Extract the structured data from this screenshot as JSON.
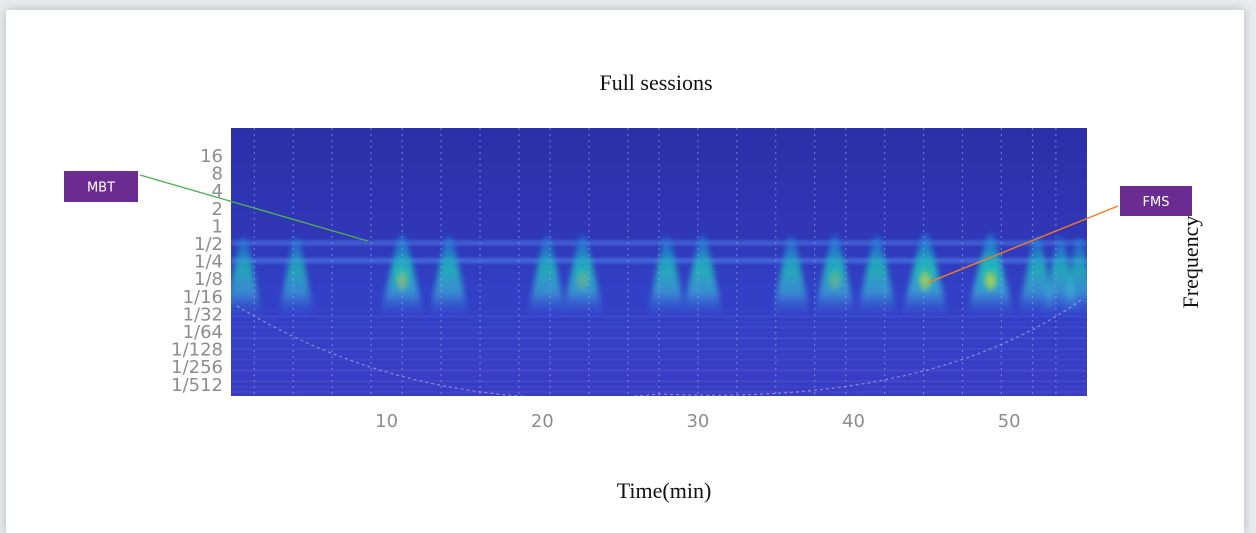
{
  "chart_data": {
    "type": "heatmap",
    "title": "Full sessions",
    "xlabel": "Time(min)",
    "ylabel": "Frequency",
    "xlim": [
      0,
      55
    ],
    "x_ticks": [
      10,
      20,
      30,
      40,
      50
    ],
    "y_tick_labels": [
      "16",
      "8",
      "4",
      "2",
      "1",
      "1/2",
      "1/4",
      "1/8",
      "1/16",
      "1/32",
      "1/64",
      "1/128",
      "1/256",
      "1/512"
    ],
    "y_scale": "log2",
    "colormap": "parula",
    "session_markers_min": [
      1.5,
      4,
      6.5,
      9,
      11,
      13.5,
      16,
      18.5,
      20.5,
      23,
      25.5,
      27.5,
      30,
      32.5,
      35,
      37.5,
      39.5,
      42,
      44.5,
      47,
      49.5,
      51.5,
      53
    ],
    "bursts": [
      {
        "time": 0.8,
        "intensity": 0.55
      },
      {
        "time": 4.2,
        "intensity": 0.5
      },
      {
        "time": 11.0,
        "intensity": 0.78
      },
      {
        "time": 14.0,
        "intensity": 0.65
      },
      {
        "time": 20.3,
        "intensity": 0.62
      },
      {
        "time": 22.6,
        "intensity": 0.72
      },
      {
        "time": 28.0,
        "intensity": 0.62
      },
      {
        "time": 30.3,
        "intensity": 0.7
      },
      {
        "time": 36.0,
        "intensity": 0.6
      },
      {
        "time": 38.8,
        "intensity": 0.72
      },
      {
        "time": 41.5,
        "intensity": 0.66
      },
      {
        "time": 44.6,
        "intensity": 0.88
      },
      {
        "time": 48.8,
        "intensity": 0.9
      },
      {
        "time": 51.8,
        "intensity": 0.62
      },
      {
        "time": 53.3,
        "intensity": 0.58
      },
      {
        "time": 54.5,
        "intensity": 0.5
      }
    ],
    "bands": [
      {
        "frequency": "1/2",
        "intensity": 0.35
      },
      {
        "frequency": "1/4",
        "intensity": 0.42
      }
    ],
    "annotations": [
      {
        "label": "MBT",
        "color": "#6a2c91",
        "line_color": "#4caf50",
        "target_time": 9.3,
        "target_frequency": "1/2"
      },
      {
        "label": "FMS",
        "color": "#6a2c91",
        "line_color": "#f47b20",
        "target_time": 44.6,
        "target_frequency": "1/8"
      }
    ]
  }
}
